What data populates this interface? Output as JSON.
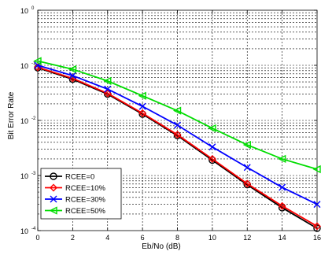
{
  "chart_data": {
    "type": "line",
    "xlabel": "Eb/No (dB)",
    "ylabel": "Bit Error Rate",
    "xlim": [
      0,
      16
    ],
    "ylim": [
      0.0001,
      1
    ],
    "yscale": "log",
    "grid": true,
    "legend_position": "bottom-left",
    "x_ticks": [
      0,
      2,
      4,
      6,
      8,
      10,
      12,
      14,
      16
    ],
    "y_tick_exponents": [
      -4,
      -3,
      -2,
      -1,
      0
    ],
    "x": [
      0,
      2,
      4,
      6,
      8,
      10,
      12,
      14,
      16
    ],
    "series": [
      {
        "name": "RCEE=0",
        "color": "#000000",
        "marker": "circle",
        "values": [
          0.09,
          0.056,
          0.03,
          0.013,
          0.0053,
          0.0019,
          0.00068,
          0.00026,
          0.00011
        ]
      },
      {
        "name": "RCEE=10%",
        "color": "#ff0000",
        "marker": "diamond",
        "values": [
          0.092,
          0.058,
          0.031,
          0.0135,
          0.0055,
          0.002,
          0.00071,
          0.00028,
          0.00012
        ]
      },
      {
        "name": "RCEE=30%",
        "color": "#0000ff",
        "marker": "x",
        "values": [
          0.1,
          0.065,
          0.037,
          0.018,
          0.0082,
          0.0033,
          0.0014,
          0.00061,
          0.0003
        ]
      },
      {
        "name": "RCEE=50%",
        "color": "#00dd00",
        "marker": "triangle-left",
        "values": [
          0.12,
          0.085,
          0.052,
          0.028,
          0.015,
          0.0072,
          0.0036,
          0.002,
          0.0013
        ]
      }
    ]
  }
}
